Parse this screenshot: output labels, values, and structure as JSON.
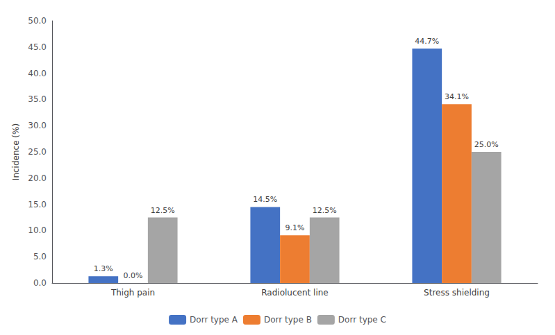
{
  "chart_data": {
    "type": "bar",
    "categories": [
      "Thigh pain",
      "Radiolucent line",
      "Stress shielding"
    ],
    "series": [
      {
        "name": "Dorr type A",
        "color": "#4472C4",
        "values": [
          1.3,
          14.5,
          44.7
        ],
        "value_labels": [
          "1.3%",
          "14.5%",
          "44.7%"
        ]
      },
      {
        "name": "Dorr type B",
        "color": "#ED7D31",
        "values": [
          0.0,
          9.1,
          34.1
        ],
        "value_labels": [
          "0.0%",
          "9.1%",
          "34.1%"
        ]
      },
      {
        "name": "Dorr type C",
        "color": "#A5A5A5",
        "values": [
          12.5,
          12.5,
          25.0
        ],
        "value_labels": [
          "12.5%",
          "12.5%",
          "25.0%"
        ]
      }
    ],
    "ylabel": "Incidence (%)",
    "ylim": [
      0,
      50
    ],
    "yticks": [
      {
        "value": 0,
        "label": "0.0"
      },
      {
        "value": 5,
        "label": "5.0"
      },
      {
        "value": 10,
        "label": "10.0"
      },
      {
        "value": 15,
        "label": "15.0"
      },
      {
        "value": 20,
        "label": "20.0"
      },
      {
        "value": 25,
        "label": "25.0"
      },
      {
        "value": 30,
        "label": "30.0"
      },
      {
        "value": 35,
        "label": "35.0"
      },
      {
        "value": 40,
        "label": "40.0"
      },
      {
        "value": 45,
        "label": "45.0"
      },
      {
        "value": 50,
        "label": "50.0"
      }
    ],
    "grid": false,
    "legend": "bottom",
    "data_labels": true
  }
}
